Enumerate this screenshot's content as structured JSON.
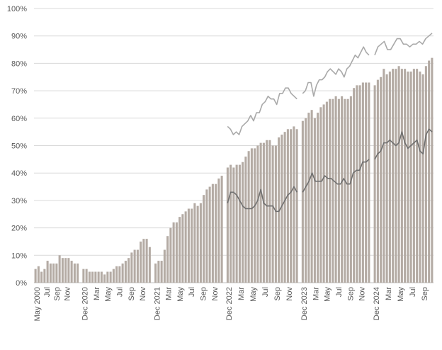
{
  "colors": {
    "bar": "#b4aba4",
    "line_upper": "#a9a9a9",
    "line_lower": "#707070",
    "grid": "#d9d9d9",
    "axis": "#bfbfbf",
    "text": "#595959"
  },
  "chart_data": {
    "type": "bar",
    "title": "",
    "xlabel": "",
    "ylabel": "",
    "ylim": [
      0,
      100
    ],
    "y_tick_step": 10,
    "y_tick_format": "percent",
    "grid": true,
    "legend": "none",
    "segments": [
      {
        "tick_labels": [
          "May 2000",
          "",
          "Jul",
          "",
          "Sep",
          "",
          "Nov",
          "",
          ""
        ],
        "values": [
          5,
          6,
          4,
          5,
          8,
          7,
          7,
          7,
          10,
          9,
          9,
          9,
          8,
          7,
          7
        ],
        "upper_line": null,
        "lower_line": null
      },
      {
        "tick_labels": [
          "Dec 2020",
          "",
          "Mar",
          "",
          "May",
          "",
          "Jul",
          "",
          "Sep",
          "",
          "Nov",
          ""
        ],
        "values": [
          5,
          5,
          4,
          4,
          4,
          4,
          4,
          3,
          4,
          4,
          5,
          6,
          6,
          7,
          8,
          9,
          11,
          12,
          12,
          15,
          16,
          16,
          13
        ],
        "upper_line": null,
        "lower_line": null
      },
      {
        "tick_labels": [
          "Dec 2021",
          "",
          "Mar",
          "",
          "May",
          "",
          "Jul",
          "",
          "Sep",
          "",
          "Nov",
          ""
        ],
        "values": [
          7,
          8,
          8,
          12,
          17,
          20,
          22,
          22,
          24,
          25,
          26,
          27,
          27,
          29,
          28,
          29,
          32,
          34,
          35,
          36,
          36,
          38,
          39
        ],
        "upper_line": null,
        "lower_line": null
      },
      {
        "tick_labels": [
          "Dec 2022",
          "",
          "Mar",
          "",
          "May",
          "",
          "Jul",
          "",
          "Sep",
          "",
          "Nov",
          ""
        ],
        "values": [
          42,
          43,
          42,
          43,
          43,
          44,
          46,
          48,
          49,
          49,
          50,
          51,
          51,
          52,
          52,
          50,
          50,
          53,
          54,
          55,
          56,
          56,
          57,
          56
        ],
        "upper_line": [
          57,
          56,
          54,
          55,
          54,
          57,
          58,
          59,
          61,
          59,
          62,
          62,
          65,
          66,
          68,
          67,
          67,
          65,
          69,
          69,
          71,
          71,
          69,
          68,
          67
        ],
        "lower_line": [
          29,
          33,
          33,
          32,
          30,
          28,
          27,
          27,
          27,
          28,
          30,
          34,
          29,
          28,
          28,
          28,
          26,
          26,
          28,
          30,
          32,
          33,
          35,
          33
        ]
      },
      {
        "tick_labels": [
          "Dec 2023",
          "",
          "Mar",
          "",
          "May",
          "",
          "Jul",
          "",
          "Sep",
          "",
          "Nov",
          ""
        ],
        "values": [
          59,
          60,
          62,
          63,
          60,
          62,
          64,
          65,
          66,
          67,
          67,
          68,
          67,
          68,
          67,
          67,
          68,
          71,
          72,
          72,
          73,
          73,
          73
        ],
        "upper_line": [
          69,
          70,
          73,
          73,
          68,
          72,
          74,
          74,
          75,
          77,
          78,
          77,
          76,
          78,
          77,
          75,
          78,
          79,
          81,
          83,
          82,
          84,
          86,
          84,
          83
        ],
        "lower_line": [
          33,
          35,
          37,
          40,
          37,
          37,
          37,
          39,
          38,
          38,
          37,
          36,
          36,
          38,
          36,
          36,
          40,
          41,
          41,
          44,
          44,
          45
        ]
      },
      {
        "tick_labels": [
          "Dec 2024",
          "",
          "Mar",
          "",
          "May",
          "",
          "Jul",
          "",
          "Sep",
          ""
        ],
        "values": [
          72,
          74,
          75,
          78,
          76,
          77,
          78,
          78,
          79,
          78,
          78,
          77,
          77,
          78,
          78,
          77,
          76,
          79,
          81,
          82
        ],
        "upper_line": [
          83,
          86,
          87,
          88,
          85,
          85,
          87,
          89,
          89,
          87,
          87,
          86,
          87,
          87,
          88,
          87,
          89,
          90,
          91
        ],
        "lower_line": [
          45,
          47,
          48,
          51,
          51,
          52,
          51,
          50,
          51,
          55,
          51,
          49,
          50,
          51,
          52,
          48,
          47,
          54,
          56,
          55
        ]
      }
    ]
  }
}
